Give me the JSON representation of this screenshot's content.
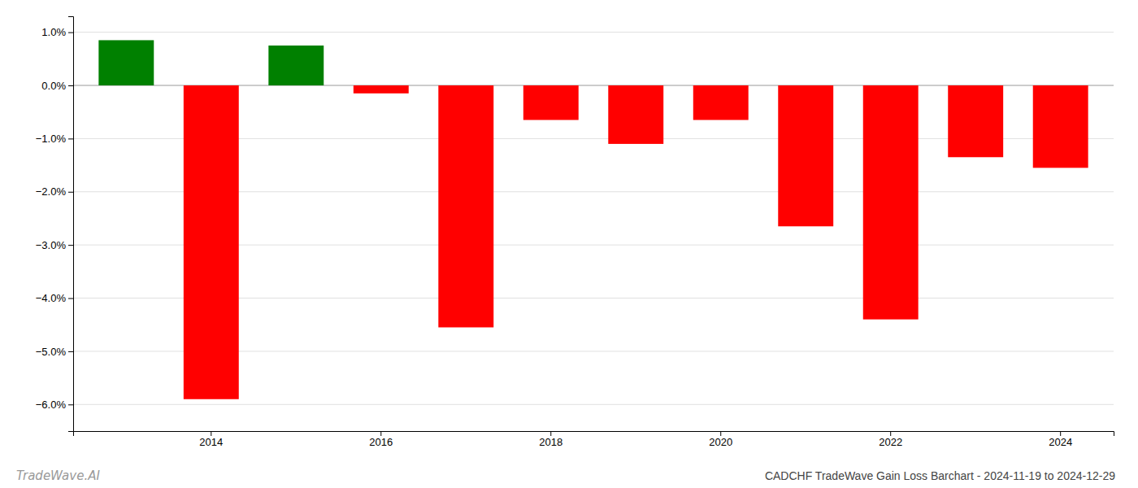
{
  "chart_data": {
    "type": "bar",
    "title": "CADCHF TradeWave Gain Loss Barchart - 2024-11-19 to 2024-12-29",
    "annotations": [
      {
        "text": "TradeWave.AI"
      }
    ],
    "categories": [
      null,
      "2014",
      null,
      "2016",
      null,
      "2018",
      null,
      "2020",
      null,
      "2022",
      null,
      "2024"
    ],
    "values": [
      0.0085,
      -0.059,
      0.0075,
      -0.0015,
      -0.0455,
      -0.0065,
      -0.011,
      -0.0065,
      -0.0265,
      -0.044,
      -0.0135,
      -0.0155
    ],
    "colors": [
      "#008000",
      "#ff0000",
      "#008000",
      "#ff0000",
      "#ff0000",
      "#ff0000",
      "#ff0000",
      "#ff0000",
      "#ff0000",
      "#ff0000",
      "#ff0000",
      "#ff0000"
    ],
    "ylim": [
      -0.065,
      0.013
    ],
    "yticks": [
      {
        "value": -0.06,
        "label": "−6.0%"
      },
      {
        "value": -0.05,
        "label": "−5.0%"
      },
      {
        "value": -0.04,
        "label": "−4.0%"
      },
      {
        "value": -0.03,
        "label": "−3.0%"
      },
      {
        "value": -0.02,
        "label": "−2.0%"
      },
      {
        "value": -0.01,
        "label": "−1.0%"
      },
      {
        "value": 0.0,
        "label": "0.0%"
      },
      {
        "value": 0.01,
        "label": "1.0%"
      }
    ],
    "grid": true
  }
}
